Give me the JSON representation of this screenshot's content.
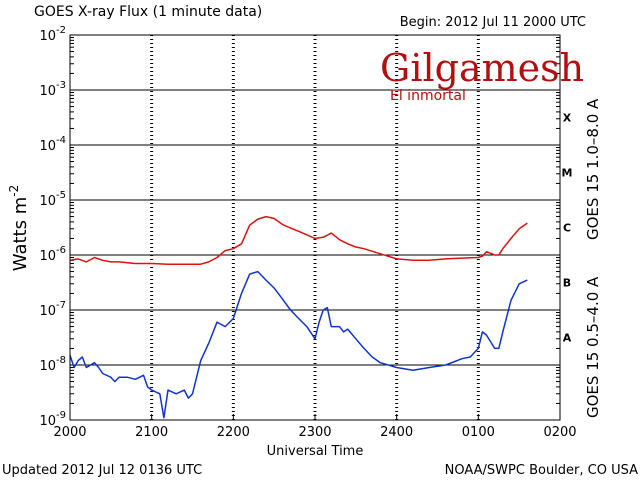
{
  "chart_data": {
    "type": "line",
    "title": "GOES X-ray Flux (1 minute data)",
    "begin_label": "Begin:  2012 Jul 11 2000 UTC",
    "xlabel": "Universal Time",
    "ylabel_main": "Watts m",
    "ylabel_sup": "-2",
    "x_ticks": [
      "2000",
      "2100",
      "2200",
      "2300",
      "2400",
      "0100",
      "0200"
    ],
    "x_range_hours": [
      0,
      6
    ],
    "yscale": "log",
    "ylim": [
      1e-09,
      0.01
    ],
    "y_ticks": [
      {
        "base": "10",
        "exp": "-2",
        "value": 0.01
      },
      {
        "base": "10",
        "exp": "-3",
        "value": 0.001
      },
      {
        "base": "10",
        "exp": "-4",
        "value": 0.0001
      },
      {
        "base": "10",
        "exp": "-5",
        "value": 1e-05
      },
      {
        "base": "10",
        "exp": "-6",
        "value": 1e-06
      },
      {
        "base": "10",
        "exp": "-7",
        "value": 1e-07
      },
      {
        "base": "10",
        "exp": "-8",
        "value": 1e-08
      },
      {
        "base": "10",
        "exp": "-9",
        "value": 1e-09
      }
    ],
    "flare_classes": [
      {
        "label": "X",
        "low": 0.0001,
        "high": 0.001
      },
      {
        "label": "M",
        "low": 1e-05,
        "high": 0.0001
      },
      {
        "label": "C",
        "low": 1e-06,
        "high": 1e-05
      },
      {
        "label": "B",
        "low": 1e-07,
        "high": 1e-06
      },
      {
        "label": "A",
        "low": 1e-08,
        "high": 1e-07
      }
    ],
    "series": [
      {
        "name": "GOES 15 1.0–8.0 A",
        "color": "#dd1111",
        "x_hours": [
          0.0,
          0.1,
          0.2,
          0.3,
          0.4,
          0.5,
          0.6,
          0.8,
          1.0,
          1.2,
          1.5,
          1.6,
          1.7,
          1.8,
          1.9,
          2.0,
          2.1,
          2.2,
          2.3,
          2.4,
          2.5,
          2.6,
          2.7,
          2.8,
          3.0,
          3.1,
          3.2,
          3.3,
          3.4,
          3.5,
          3.6,
          3.8,
          4.0,
          4.2,
          4.4,
          4.6,
          4.8,
          5.0,
          5.05,
          5.1,
          5.2,
          5.25,
          5.3,
          5.4,
          5.5,
          5.6
        ],
        "y": [
          8e-07,
          8.5e-07,
          7.5e-07,
          9e-07,
          8e-07,
          7.5e-07,
          7.5e-07,
          7e-07,
          7e-07,
          6.8e-07,
          6.8e-07,
          6.8e-07,
          7.5e-07,
          9e-07,
          1.2e-06,
          1.3e-06,
          1.6e-06,
          3.5e-06,
          4.5e-06,
          5e-06,
          4.6e-06,
          3.6e-06,
          3.1e-06,
          2.7e-06,
          2e-06,
          2.1e-06,
          2.5e-06,
          1.9e-06,
          1.6e-06,
          1.4e-06,
          1.3e-06,
          1.05e-06,
          8.5e-07,
          8e-07,
          8e-07,
          8.5e-07,
          8.8e-07,
          9e-07,
          9.5e-07,
          1.15e-06,
          1e-06,
          1e-06,
          1.3e-06,
          2e-06,
          3e-06,
          3.8e-06
        ]
      },
      {
        "name": "GOES 15 0.5–4.0 A",
        "color": "#1133cc",
        "x_hours": [
          0.0,
          0.05,
          0.1,
          0.15,
          0.2,
          0.3,
          0.35,
          0.4,
          0.5,
          0.55,
          0.6,
          0.7,
          0.8,
          0.9,
          0.95,
          1.0,
          1.1,
          1.15,
          1.2,
          1.3,
          1.4,
          1.45,
          1.5,
          1.6,
          1.7,
          1.8,
          1.9,
          2.0,
          2.1,
          2.2,
          2.3,
          2.4,
          2.5,
          2.6,
          2.7,
          2.8,
          2.9,
          3.0,
          3.05,
          3.1,
          3.15,
          3.2,
          3.3,
          3.35,
          3.4,
          3.5,
          3.6,
          3.7,
          3.8,
          4.0,
          4.2,
          4.4,
          4.6,
          4.8,
          4.9,
          5.0,
          5.05,
          5.1,
          5.2,
          5.25,
          5.3,
          5.4,
          5.5,
          5.6
        ],
        "y": [
          1.5e-08,
          9e-09,
          1.2e-08,
          1.4e-08,
          9e-09,
          1.1e-08,
          9e-09,
          7e-09,
          6e-09,
          5e-09,
          6e-09,
          6e-09,
          5.5e-09,
          6.5e-09,
          4e-09,
          3.5e-09,
          3e-09,
          1.1e-09,
          3.5e-09,
          3e-09,
          3.5e-09,
          2.5e-09,
          3e-09,
          1.2e-08,
          2.5e-08,
          6e-08,
          5e-08,
          7e-08,
          2e-07,
          4.5e-07,
          5e-07,
          3.5e-07,
          2.5e-07,
          1.6e-07,
          1e-07,
          7e-08,
          5e-08,
          3e-08,
          6e-08,
          1e-07,
          1.1e-07,
          5e-08,
          5e-08,
          4e-08,
          4.5e-08,
          3e-08,
          2e-08,
          1.4e-08,
          1.1e-08,
          9e-09,
          8e-09,
          9e-09,
          1e-08,
          1.3e-08,
          1.4e-08,
          2e-08,
          4e-08,
          3.5e-08,
          2e-08,
          2e-08,
          4e-08,
          1.5e-07,
          3e-07,
          3.5e-07
        ]
      }
    ],
    "footer_left": "Updated 2012 Jul 12 0136 UTC",
    "footer_right": "NOAA/SWPC Boulder, CO USA"
  },
  "logo": {
    "name": "Gilgamesh",
    "subtitle": "El inmortal"
  }
}
